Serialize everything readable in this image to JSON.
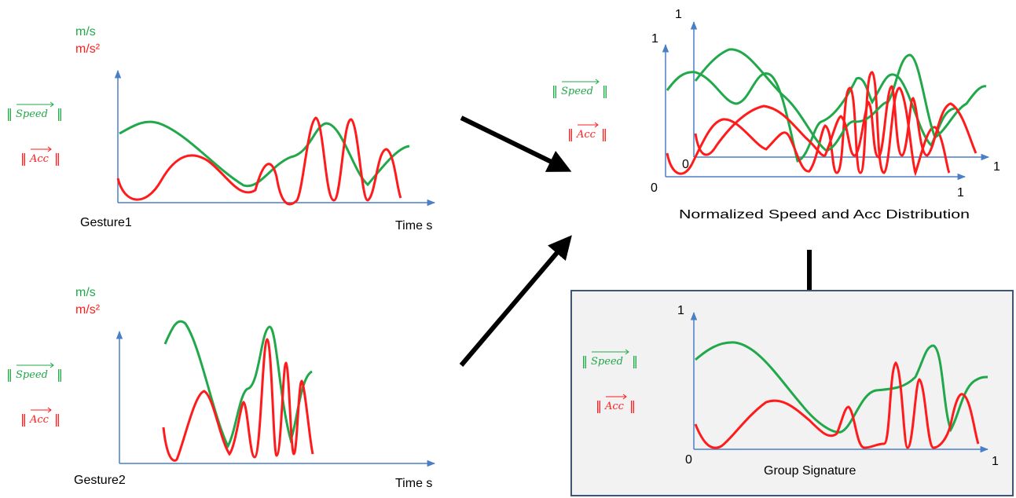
{
  "colors": {
    "speed": "#21a84a",
    "acc": "#ff1b1b",
    "axis": "#4a7fc7",
    "arrow": "#000000",
    "box_fill": "#f2f2f2",
    "box_border": "#3e5573"
  },
  "units": {
    "speed": "m/s",
    "acc": "m/s²"
  },
  "symbols": {
    "speed": "Speed",
    "acc": "Acc"
  },
  "gesture1": {
    "label": "Gesture1",
    "time_label": "Time s"
  },
  "gesture2": {
    "label": "Gesture2",
    "time_label": "Time s"
  },
  "normalized": {
    "caption": "Normalized Speed and Acc Distribution",
    "ticks": {
      "back_y": "1",
      "back_x": "1",
      "back_origin": "0",
      "front_y": "1",
      "front_x": "1",
      "front_origin": "0"
    }
  },
  "signature": {
    "caption": "Group Signature",
    "ticks": {
      "y": "1",
      "x": "1",
      "origin": "0"
    }
  }
}
